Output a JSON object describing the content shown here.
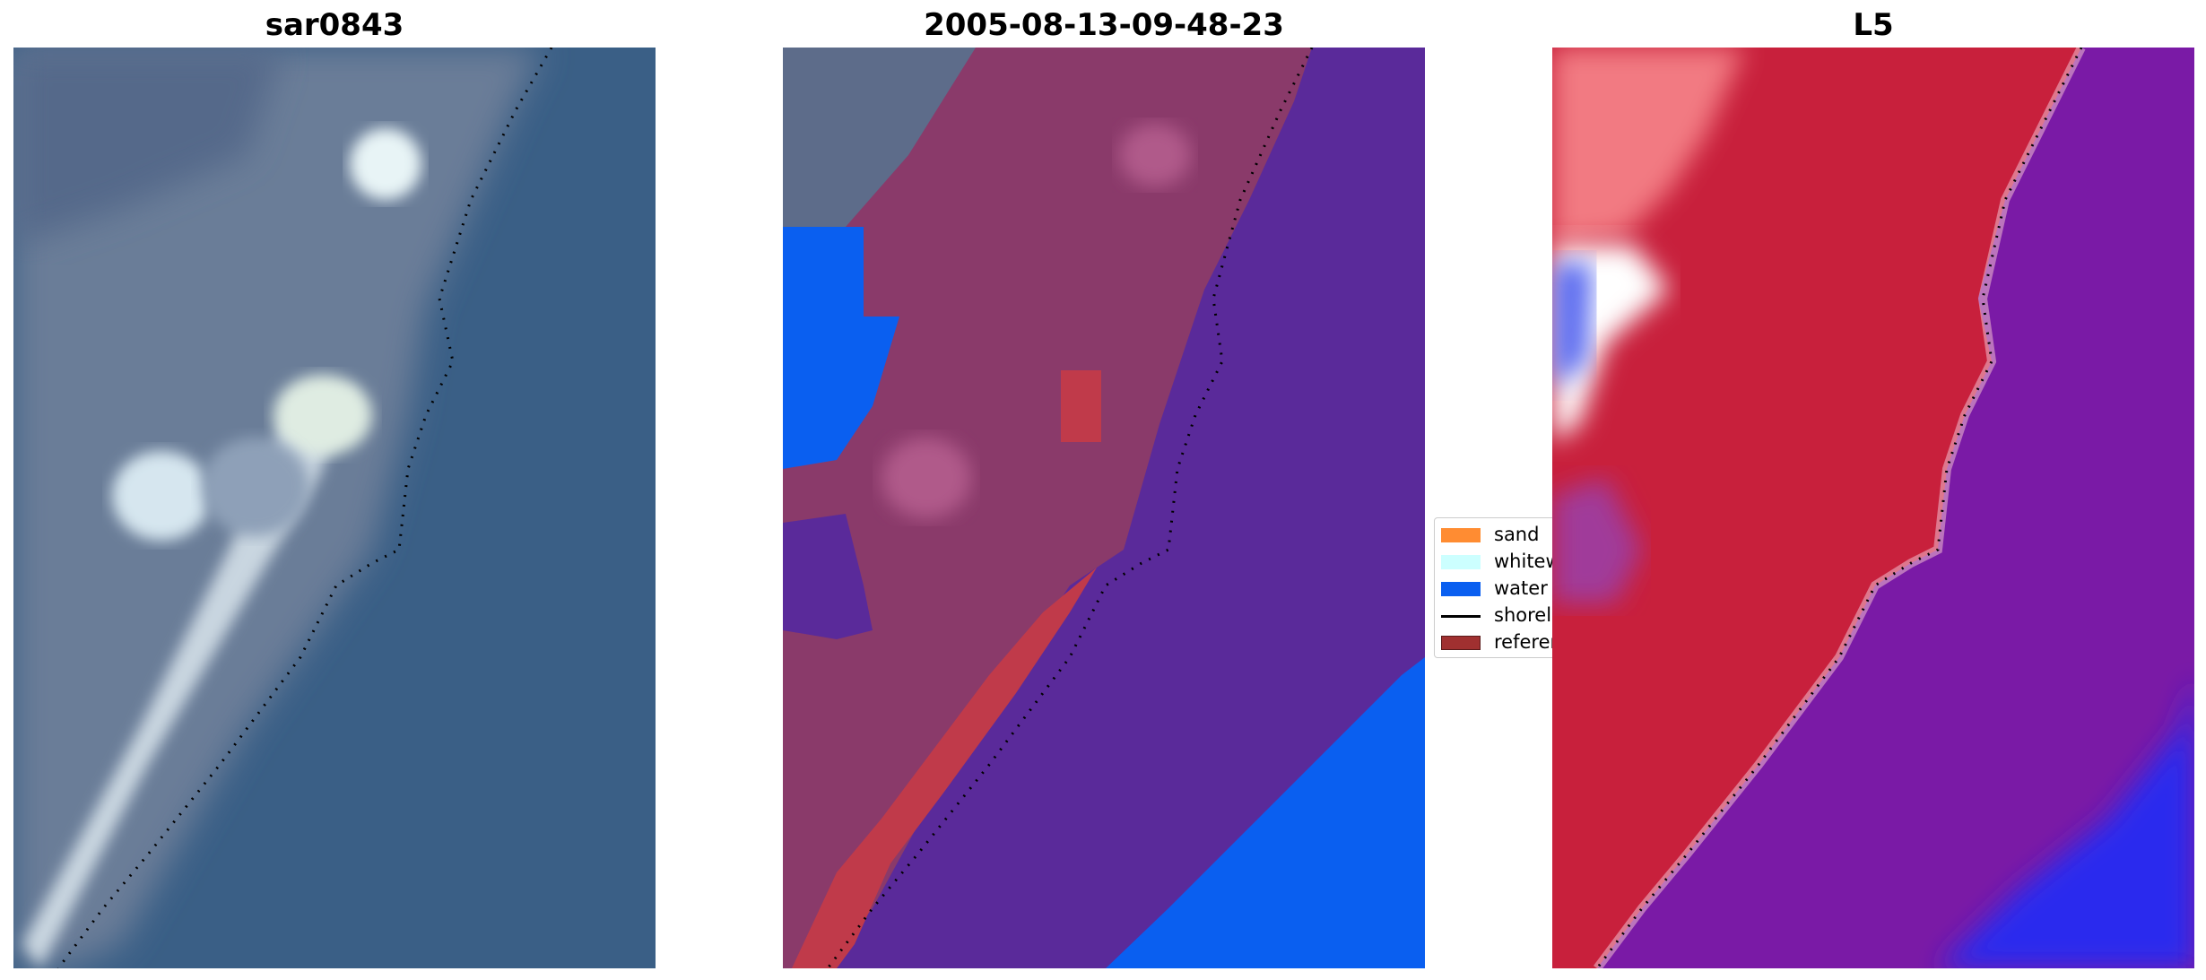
{
  "chart_data": [
    {
      "type": "image",
      "title": "sar0843",
      "series": [
        {
          "name": "",
          "values": []
        }
      ]
    },
    {
      "type": "image",
      "title": "2005-08-13-09-48-23",
      "legend": {
        "placement": "right",
        "entries": [
          {
            "label": "sand",
            "color": "#ff8c32"
          },
          {
            "label": "whitew",
            "color": "#ccffff"
          },
          {
            "label": "water",
            "color": "#0a5ff0"
          },
          {
            "label": "shorel",
            "color": "#000000",
            "style": "line"
          },
          {
            "label": "referen",
            "color": "#a03030"
          }
        ]
      }
    },
    {
      "type": "image",
      "title": "L5"
    }
  ],
  "colors": {
    "rgb_water": "#3a5f86",
    "rgb_land": "#6b7d98",
    "rgb_beach": "#d8e4ea",
    "class_land": "#8a3a6a",
    "class_water_overlay": "#5a2a9a",
    "class_water_pure": "#0a5ff0",
    "class_reference": "#c03a4a",
    "index_land": "#c8203c",
    "index_water": "#7a1aa6",
    "index_sea": "#2a2aee"
  }
}
